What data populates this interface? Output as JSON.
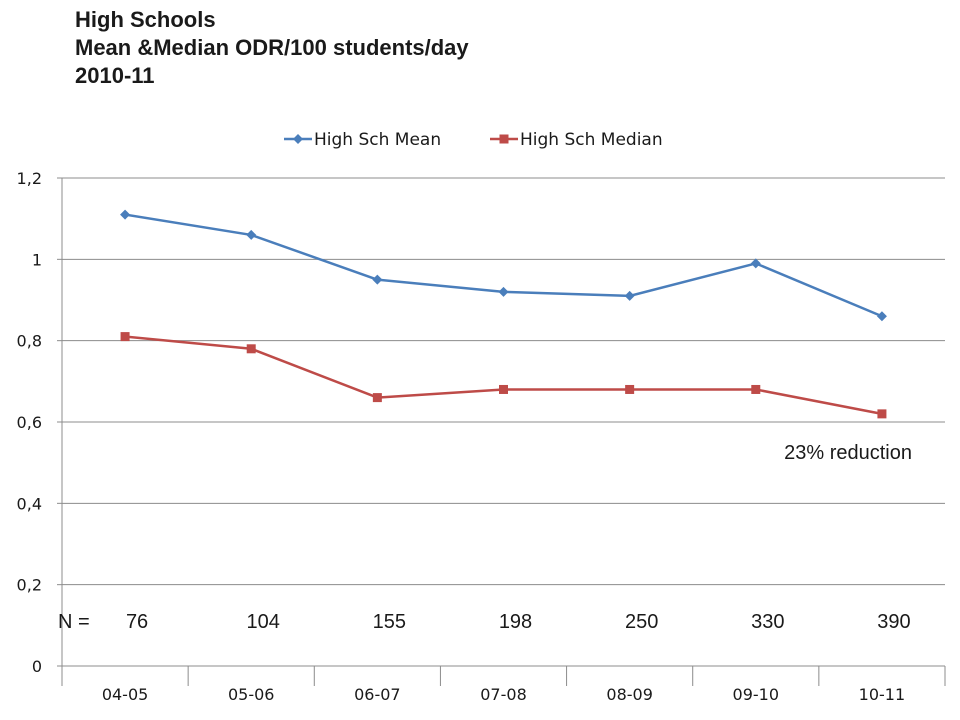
{
  "title_lines": [
    "High Schools",
    "Mean &Median ODR/100 students/day",
    "2010-11"
  ],
  "chart_data": {
    "type": "line",
    "categories": [
      "04-05",
      "05-06",
      "06-07",
      "07-08",
      "08-09",
      "09-10",
      "10-11"
    ],
    "series": [
      {
        "name": "High Sch Mean",
        "values": [
          1.11,
          1.06,
          0.95,
          0.92,
          0.91,
          0.99,
          0.86
        ],
        "color": "#4a7ebb",
        "marker": "diamond"
      },
      {
        "name": "High Sch Median",
        "values": [
          0.81,
          0.78,
          0.66,
          0.68,
          0.68,
          0.68,
          0.62
        ],
        "color": "#be4b48",
        "marker": "square"
      }
    ],
    "ylim": [
      0,
      1.2
    ],
    "yticks": [
      "0",
      "0,2",
      "0,4",
      "0,6",
      "0,8",
      "1",
      "1,2"
    ],
    "grid": true,
    "legend": "top",
    "n_label": "N =",
    "n_values": [
      "76",
      "104",
      "155",
      "198",
      "250",
      "330",
      "390"
    ],
    "annotation": "23% reduction"
  }
}
